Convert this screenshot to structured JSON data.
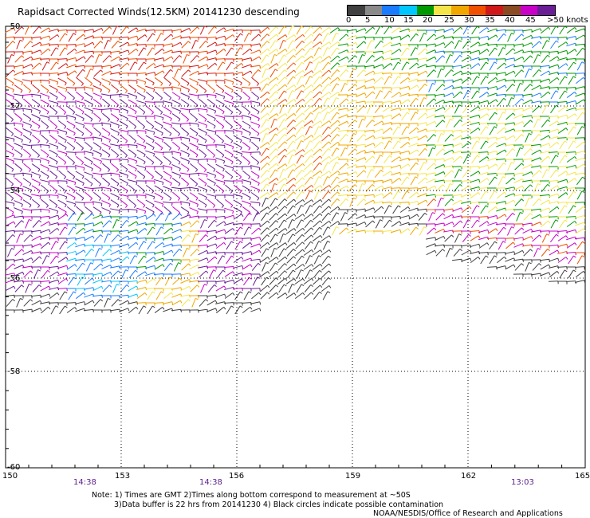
{
  "title": "Rapidsact Corrected Winds(12.5KM) 20141230 descending",
  "legend": {
    "labels": [
      "0",
      "5",
      "10",
      "15",
      "20",
      "25",
      "30",
      "35",
      "40",
      "45",
      ">50 knots"
    ],
    "colors": [
      "#404040",
      "#8a8a8a",
      "#1b7bff",
      "#00c8ff",
      "#009a00",
      "#f4e64a",
      "#f0a800",
      "#f05000",
      "#d01818",
      "#8a4a22",
      "#c800c8",
      "#6a1e96"
    ]
  },
  "axes": {
    "lat_labels": [
      "-50",
      "-52",
      "-54",
      "-56",
      "-58",
      "-60"
    ],
    "lon_labels": [
      "150",
      "153",
      "156",
      "159",
      "162",
      "165"
    ]
  },
  "pass_times": [
    "14:38",
    "14:38",
    "13:03"
  ],
  "notes": {
    "line1": "Note: 1) Times are GMT 2)Times along bottom correspond to measurement at ~50S",
    "line2": "3)Data buffer is 22 hrs from 20141230 4) Black circles indicate possible contamination"
  },
  "credit": "NOAA/NESDIS/Office of Research and Applications"
}
